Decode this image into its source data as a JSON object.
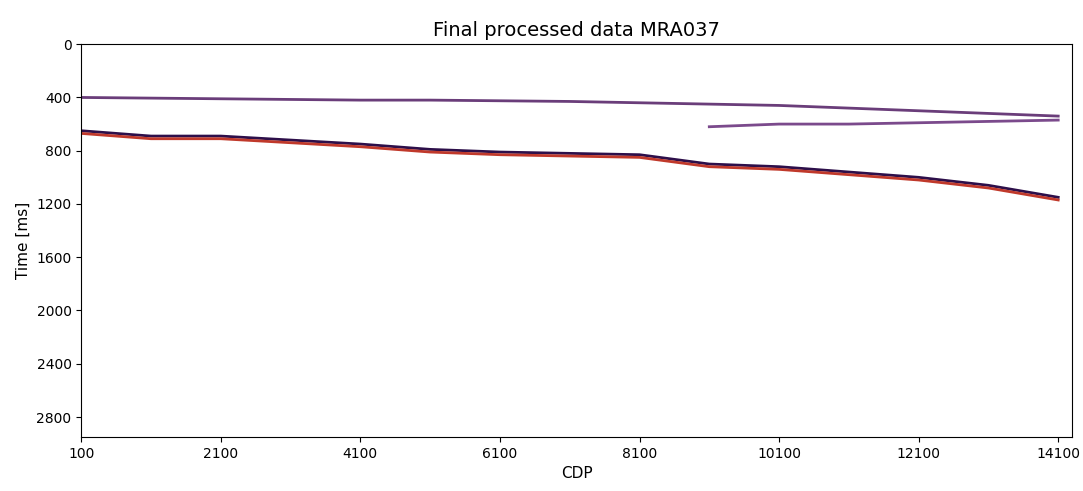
{
  "chart_data": {
    "type": "line",
    "title": "Final processed data MRA037",
    "x_label": "CDP",
    "y_label": "Time [ms]",
    "x": [
      100,
      1100,
      2100,
      3100,
      4100,
      5100,
      6100,
      7100,
      8100,
      9100,
      10100,
      11100,
      12100,
      13100,
      14100
    ],
    "series": [
      {
        "color": "#6a3d7a",
        "values": [
          400,
          405,
          410,
          415,
          420,
          420,
          425,
          430,
          440,
          450,
          460,
          480,
          500,
          520,
          540
        ]
      },
      {
        "color": "#7b4a8c",
        "values": [
          null,
          null,
          null,
          null,
          null,
          null,
          null,
          null,
          null,
          620,
          600,
          600,
          590,
          580,
          570
        ]
      },
      {
        "color": "#2d0f4a",
        "values": [
          650,
          690,
          690,
          720,
          750,
          790,
          810,
          820,
          830,
          900,
          920,
          960,
          1000,
          1060,
          1150
        ]
      },
      {
        "color": "#c0392b",
        "values": [
          670,
          710,
          710,
          740,
          770,
          810,
          830,
          840,
          850,
          920,
          940,
          980,
          1020,
          1080,
          1170
        ]
      }
    ],
    "xlim": [
      100,
      14300
    ],
    "xticks": [
      100,
      2100,
      4100,
      6100,
      8100,
      10100,
      12100,
      14100
    ],
    "ylim": [
      2950,
      0
    ],
    "yticks": [
      0,
      400,
      800,
      1200,
      1600,
      2000,
      2400,
      2800
    ],
    "grid": false
  }
}
